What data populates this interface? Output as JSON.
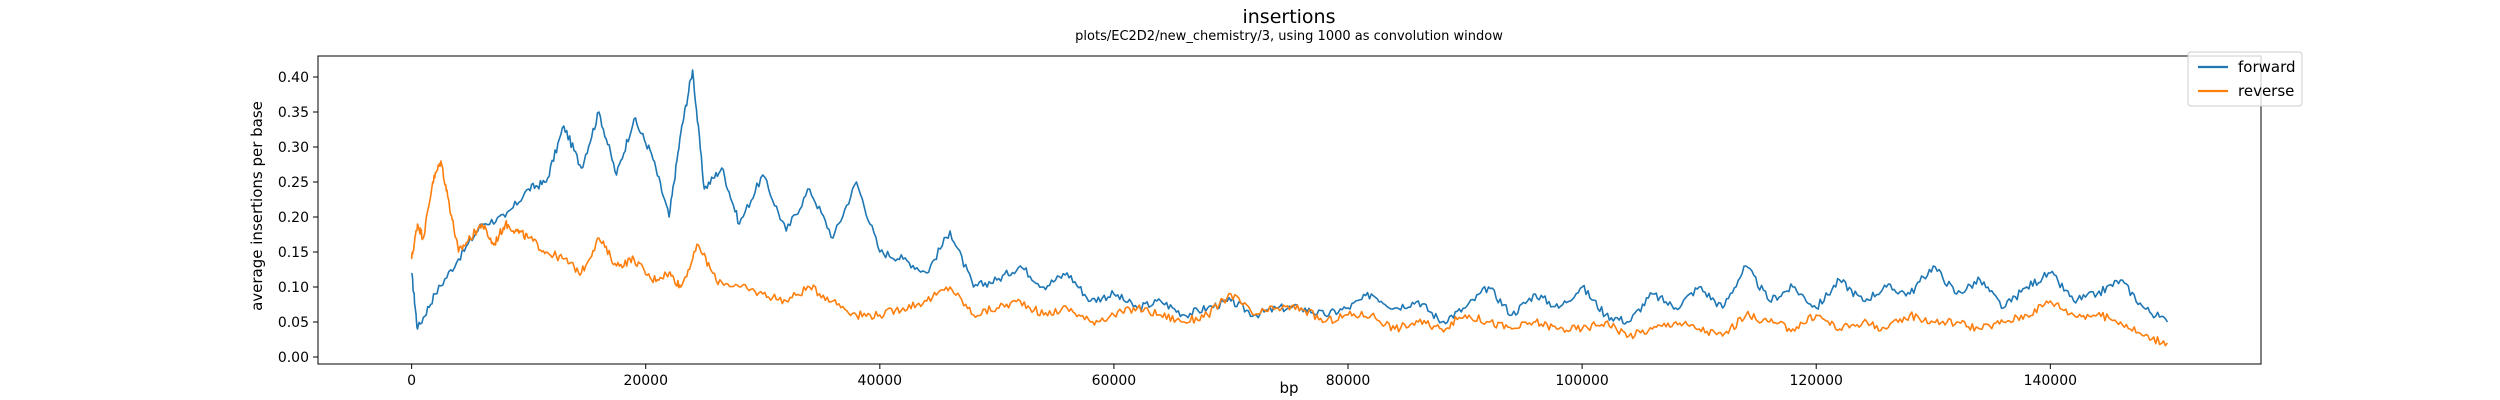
{
  "chart_data": {
    "type": "line",
    "title": "insertions",
    "subtitle": "plots/EC2D2/new_chemistry/3, using 1000 as convolution window",
    "xlabel": "bp",
    "ylabel": "average insertions per base",
    "xlim": [
      -8000,
      158000
    ],
    "ylim": [
      -0.01,
      0.43
    ],
    "xticks": [
      0,
      20000,
      40000,
      60000,
      80000,
      100000,
      120000,
      140000
    ],
    "xtick_labels": [
      "0",
      "20000",
      "40000",
      "60000",
      "80000",
      "100000",
      "120000",
      "140000"
    ],
    "yticks": [
      0.0,
      0.05,
      0.1,
      0.15,
      0.2,
      0.25,
      0.3,
      0.35,
      0.4
    ],
    "ytick_labels": [
      "0.00",
      "0.05",
      "0.10",
      "0.15",
      "0.20",
      "0.25",
      "0.30",
      "0.35",
      "0.40"
    ],
    "legend_position": "top-right",
    "grid": false,
    "series": [
      {
        "name": "forward",
        "color": "#1f77b4",
        "x": [
          0,
          500,
          2000,
          4000,
          6000,
          8000,
          10000,
          11500,
          13000,
          14500,
          16000,
          17500,
          19000,
          20500,
          22000,
          23000,
          24000,
          25000,
          26500,
          28000,
          30000,
          32000,
          34000,
          36000,
          38000,
          40000,
          42000,
          44000,
          46000,
          48000,
          50000,
          52000,
          54000,
          56000,
          58000,
          60000,
          62000,
          64000,
          66000,
          68000,
          70000,
          72000,
          74000,
          76000,
          78000,
          80000,
          82000,
          84000,
          86000,
          88000,
          90000,
          92000,
          94000,
          96000,
          98000,
          100000,
          102000,
          104000,
          106000,
          108000,
          110000,
          112000,
          114000,
          116000,
          118000,
          120000,
          122000,
          124000,
          126000,
          128000,
          130000,
          132000,
          134000,
          136000,
          138000,
          140000,
          142000,
          144000,
          146000,
          148000,
          150000
        ],
        "y": [
          0.12,
          0.04,
          0.09,
          0.14,
          0.19,
          0.2,
          0.24,
          0.25,
          0.33,
          0.27,
          0.35,
          0.26,
          0.34,
          0.29,
          0.2,
          0.32,
          0.41,
          0.24,
          0.27,
          0.19,
          0.26,
          0.18,
          0.24,
          0.17,
          0.25,
          0.15,
          0.14,
          0.12,
          0.18,
          0.1,
          0.11,
          0.13,
          0.1,
          0.12,
          0.08,
          0.09,
          0.07,
          0.08,
          0.06,
          0.07,
          0.08,
          0.06,
          0.07,
          0.07,
          0.06,
          0.07,
          0.09,
          0.07,
          0.08,
          0.05,
          0.07,
          0.1,
          0.06,
          0.09,
          0.07,
          0.1,
          0.06,
          0.05,
          0.09,
          0.07,
          0.1,
          0.07,
          0.13,
          0.08,
          0.1,
          0.07,
          0.11,
          0.08,
          0.1,
          0.09,
          0.13,
          0.09,
          0.11,
          0.07,
          0.1,
          0.12,
          0.08,
          0.09,
          0.11,
          0.07,
          0.05
        ]
      },
      {
        "name": "reverse",
        "color": "#ff7f0e",
        "x": [
          0,
          500,
          1000,
          1800,
          2500,
          3200,
          4000,
          5000,
          6000,
          7000,
          8000,
          9000,
          10000,
          11500,
          13000,
          14500,
          16000,
          17500,
          19000,
          20500,
          22000,
          23000,
          24500,
          26000,
          28000,
          30000,
          32000,
          34000,
          36000,
          38000,
          40000,
          42000,
          44000,
          46000,
          48000,
          50000,
          52000,
          54000,
          56000,
          58000,
          60000,
          62000,
          64000,
          66000,
          68000,
          70000,
          72000,
          74000,
          76000,
          78000,
          80000,
          82000,
          84000,
          86000,
          88000,
          90000,
          92000,
          94000,
          96000,
          98000,
          100000,
          102000,
          104000,
          106000,
          108000,
          110000,
          112000,
          114000,
          116000,
          118000,
          120000,
          122000,
          124000,
          126000,
          128000,
          130000,
          132000,
          134000,
          136000,
          138000,
          140000,
          142000,
          144000,
          146000,
          148000,
          150000
        ],
        "y": [
          0.14,
          0.19,
          0.17,
          0.25,
          0.28,
          0.22,
          0.15,
          0.17,
          0.19,
          0.16,
          0.19,
          0.18,
          0.17,
          0.15,
          0.14,
          0.12,
          0.17,
          0.13,
          0.14,
          0.11,
          0.12,
          0.1,
          0.16,
          0.11,
          0.1,
          0.09,
          0.08,
          0.1,
          0.08,
          0.06,
          0.06,
          0.07,
          0.08,
          0.1,
          0.06,
          0.07,
          0.08,
          0.06,
          0.07,
          0.05,
          0.06,
          0.07,
          0.06,
          0.05,
          0.06,
          0.09,
          0.06,
          0.07,
          0.07,
          0.05,
          0.06,
          0.06,
          0.04,
          0.05,
          0.04,
          0.06,
          0.05,
          0.04,
          0.05,
          0.04,
          0.04,
          0.05,
          0.03,
          0.04,
          0.05,
          0.04,
          0.03,
          0.06,
          0.05,
          0.04,
          0.06,
          0.04,
          0.05,
          0.04,
          0.06,
          0.05,
          0.05,
          0.04,
          0.05,
          0.06,
          0.08,
          0.06,
          0.06,
          0.05,
          0.03,
          0.02
        ]
      }
    ]
  }
}
